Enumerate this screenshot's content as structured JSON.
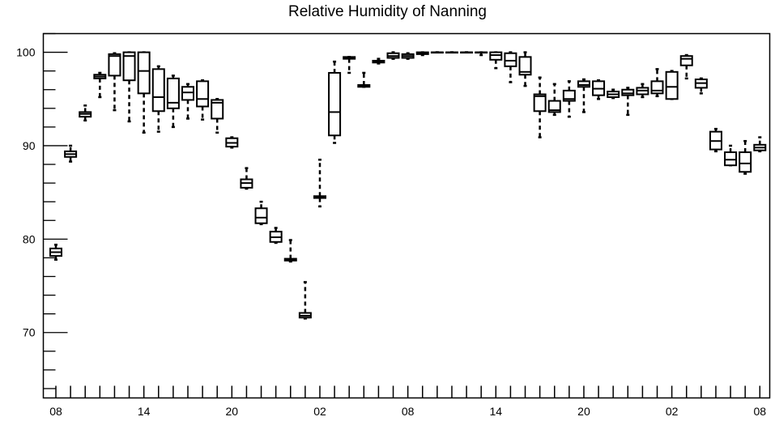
{
  "chart_data": {
    "type": "boxplot",
    "title": "Relative Humidity of Nanning",
    "xlabel": "",
    "ylabel": "",
    "ylim": [
      63,
      102
    ],
    "grid": false,
    "legend": "none",
    "y_ticks": [
      70,
      80,
      90,
      100
    ],
    "x_tick_labels": [
      "08",
      "14",
      "20",
      "02",
      "08",
      "14",
      "20",
      "02",
      "08"
    ],
    "x_tick_label_positions": [
      0,
      6,
      12,
      18,
      24,
      30,
      36,
      42,
      48
    ],
    "boxes": [
      {
        "x": 0,
        "whisker_low": 77.8,
        "q1": 78.2,
        "median": 78.6,
        "q3": 79.0,
        "whisker_high": 79.4
      },
      {
        "x": 1,
        "whisker_low": 88.3,
        "q1": 88.8,
        "median": 89.1,
        "q3": 89.4,
        "whisker_high": 90.0
      },
      {
        "x": 2,
        "whisker_low": 92.7,
        "q1": 93.1,
        "median": 93.4,
        "q3": 93.6,
        "whisker_high": 94.3
      },
      {
        "x": 3,
        "whisker_low": 95.2,
        "q1": 97.2,
        "median": 97.4,
        "q3": 97.6,
        "whisker_high": 97.8
      },
      {
        "x": 4,
        "whisker_low": 93.8,
        "q1": 97.5,
        "median": 99.6,
        "q3": 99.8,
        "whisker_high": 99.9
      },
      {
        "x": 5,
        "whisker_low": 92.6,
        "q1": 97.0,
        "median": 99.6,
        "q3": 100.0,
        "whisker_high": 100.0
      },
      {
        "x": 6,
        "whisker_low": 91.4,
        "q1": 95.6,
        "median": 98.0,
        "q3": 100.0,
        "whisker_high": 100.0
      },
      {
        "x": 7,
        "whisker_low": 91.5,
        "q1": 93.7,
        "median": 95.2,
        "q3": 98.2,
        "whisker_high": 98.5
      },
      {
        "x": 8,
        "whisker_low": 92.0,
        "q1": 94.0,
        "median": 94.6,
        "q3": 97.2,
        "whisker_high": 97.5
      },
      {
        "x": 9,
        "whisker_low": 92.9,
        "q1": 94.9,
        "median": 95.7,
        "q3": 96.3,
        "whisker_high": 96.6
      },
      {
        "x": 10,
        "whisker_low": 92.8,
        "q1": 94.2,
        "median": 95.0,
        "q3": 96.9,
        "whisker_high": 97.0
      },
      {
        "x": 11,
        "whisker_low": 91.4,
        "q1": 92.9,
        "median": 94.6,
        "q3": 94.9,
        "whisker_high": 95.0
      },
      {
        "x": 12,
        "whisker_low": 89.8,
        "q1": 89.9,
        "median": 90.3,
        "q3": 90.8,
        "whisker_high": 90.9
      },
      {
        "x": 13,
        "whisker_low": 85.4,
        "q1": 85.5,
        "median": 86.0,
        "q3": 86.4,
        "whisker_high": 87.6
      },
      {
        "x": 14,
        "whisker_low": 81.6,
        "q1": 81.7,
        "median": 82.3,
        "q3": 83.3,
        "whisker_high": 84.0
      },
      {
        "x": 15,
        "whisker_low": 79.6,
        "q1": 79.7,
        "median": 80.2,
        "q3": 80.8,
        "whisker_high": 81.2
      },
      {
        "x": 16,
        "whisker_low": 77.6,
        "q1": 77.7,
        "median": 77.8,
        "q3": 77.9,
        "whisker_high": 79.9
      },
      {
        "x": 17,
        "whisker_low": 71.5,
        "q1": 71.6,
        "median": 71.8,
        "q3": 72.1,
        "whisker_high": 75.4
      },
      {
        "x": 18,
        "whisker_low": 83.5,
        "q1": 84.4,
        "median": 84.5,
        "q3": 84.6,
        "whisker_high": 88.5
      },
      {
        "x": 19,
        "whisker_low": 90.3,
        "q1": 91.1,
        "median": 93.6,
        "q3": 97.8,
        "whisker_high": 99.0
      },
      {
        "x": 20,
        "whisker_low": 97.8,
        "q1": 99.3,
        "median": 99.4,
        "q3": 99.5,
        "whisker_high": 99.5
      },
      {
        "x": 21,
        "whisker_low": 96.3,
        "q1": 96.3,
        "median": 96.4,
        "q3": 96.5,
        "whisker_high": 97.8
      },
      {
        "x": 22,
        "whisker_low": 98.8,
        "q1": 98.9,
        "median": 99.0,
        "q3": 99.1,
        "whisker_high": 99.3
      },
      {
        "x": 23,
        "whisker_low": 99.3,
        "q1": 99.4,
        "median": 99.6,
        "q3": 99.9,
        "whisker_high": 100.0
      },
      {
        "x": 24,
        "whisker_low": 99.3,
        "q1": 99.4,
        "median": 99.6,
        "q3": 99.8,
        "whisker_high": 99.9
      },
      {
        "x": 25,
        "whisker_low": 99.7,
        "q1": 99.8,
        "median": 99.9,
        "q3": 100.0,
        "whisker_high": 100.0
      },
      {
        "x": 26,
        "whisker_low": 100.0,
        "q1": 100.0,
        "median": 100.0,
        "q3": 100.0,
        "whisker_high": 100.0
      },
      {
        "x": 27,
        "whisker_low": 100.0,
        "q1": 100.0,
        "median": 100.0,
        "q3": 100.0,
        "whisker_high": 100.0
      },
      {
        "x": 28,
        "whisker_low": 100.0,
        "q1": 100.0,
        "median": 100.0,
        "q3": 100.0,
        "whisker_high": 100.0
      },
      {
        "x": 29,
        "whisker_low": 99.7,
        "q1": 100.0,
        "median": 100.0,
        "q3": 100.0,
        "whisker_high": 100.0
      },
      {
        "x": 30,
        "whisker_low": 98.3,
        "q1": 99.2,
        "median": 99.7,
        "q3": 100.0,
        "whisker_high": 100.0
      },
      {
        "x": 31,
        "whisker_low": 96.8,
        "q1": 98.5,
        "median": 99.1,
        "q3": 99.9,
        "whisker_high": 100.0
      },
      {
        "x": 32,
        "whisker_low": 96.4,
        "q1": 97.6,
        "median": 97.9,
        "q3": 99.5,
        "whisker_high": 100.0
      },
      {
        "x": 33,
        "whisker_low": 90.9,
        "q1": 93.7,
        "median": 95.3,
        "q3": 95.5,
        "whisker_high": 97.3
      },
      {
        "x": 34,
        "whisker_low": 93.3,
        "q1": 93.6,
        "median": 93.8,
        "q3": 94.8,
        "whisker_high": 96.6
      },
      {
        "x": 35,
        "whisker_low": 93.1,
        "q1": 94.8,
        "median": 95.0,
        "q3": 95.9,
        "whisker_high": 96.9
      },
      {
        "x": 36,
        "whisker_low": 93.6,
        "q1": 96.3,
        "median": 96.5,
        "q3": 96.9,
        "whisker_high": 97.1
      },
      {
        "x": 37,
        "whisker_low": 95.0,
        "q1": 95.4,
        "median": 96.1,
        "q3": 96.9,
        "whisker_high": 97.0
      },
      {
        "x": 38,
        "whisker_low": 95.1,
        "q1": 95.2,
        "median": 95.5,
        "q3": 95.8,
        "whisker_high": 96.0
      },
      {
        "x": 39,
        "whisker_low": 93.3,
        "q1": 95.4,
        "median": 95.6,
        "q3": 96.0,
        "whisker_high": 96.2
      },
      {
        "x": 40,
        "whisker_low": 95.2,
        "q1": 95.5,
        "median": 95.9,
        "q3": 96.2,
        "whisker_high": 96.6
      },
      {
        "x": 41,
        "whisker_low": 95.3,
        "q1": 95.6,
        "median": 95.9,
        "q3": 96.9,
        "whisker_high": 98.2
      },
      {
        "x": 42,
        "whisker_low": 95.0,
        "q1": 95.0,
        "median": 96.3,
        "q3": 97.9,
        "whisker_high": 98.0
      },
      {
        "x": 43,
        "whisker_low": 97.2,
        "q1": 98.6,
        "median": 99.3,
        "q3": 99.6,
        "whisker_high": 99.7
      },
      {
        "x": 44,
        "whisker_low": 95.6,
        "q1": 96.2,
        "median": 96.7,
        "q3": 97.1,
        "whisker_high": 97.2
      },
      {
        "x": 45,
        "whisker_low": 89.4,
        "q1": 89.6,
        "median": 90.5,
        "q3": 91.5,
        "whisker_high": 91.8
      },
      {
        "x": 46,
        "whisker_low": 87.9,
        "q1": 87.9,
        "median": 88.5,
        "q3": 89.3,
        "whisker_high": 90.0
      },
      {
        "x": 47,
        "whisker_low": 87.0,
        "q1": 87.2,
        "median": 88.1,
        "q3": 89.3,
        "whisker_high": 90.5
      },
      {
        "x": 48,
        "whisker_low": 89.4,
        "q1": 89.5,
        "median": 89.8,
        "q3": 90.1,
        "whisker_high": 90.9
      }
    ]
  }
}
